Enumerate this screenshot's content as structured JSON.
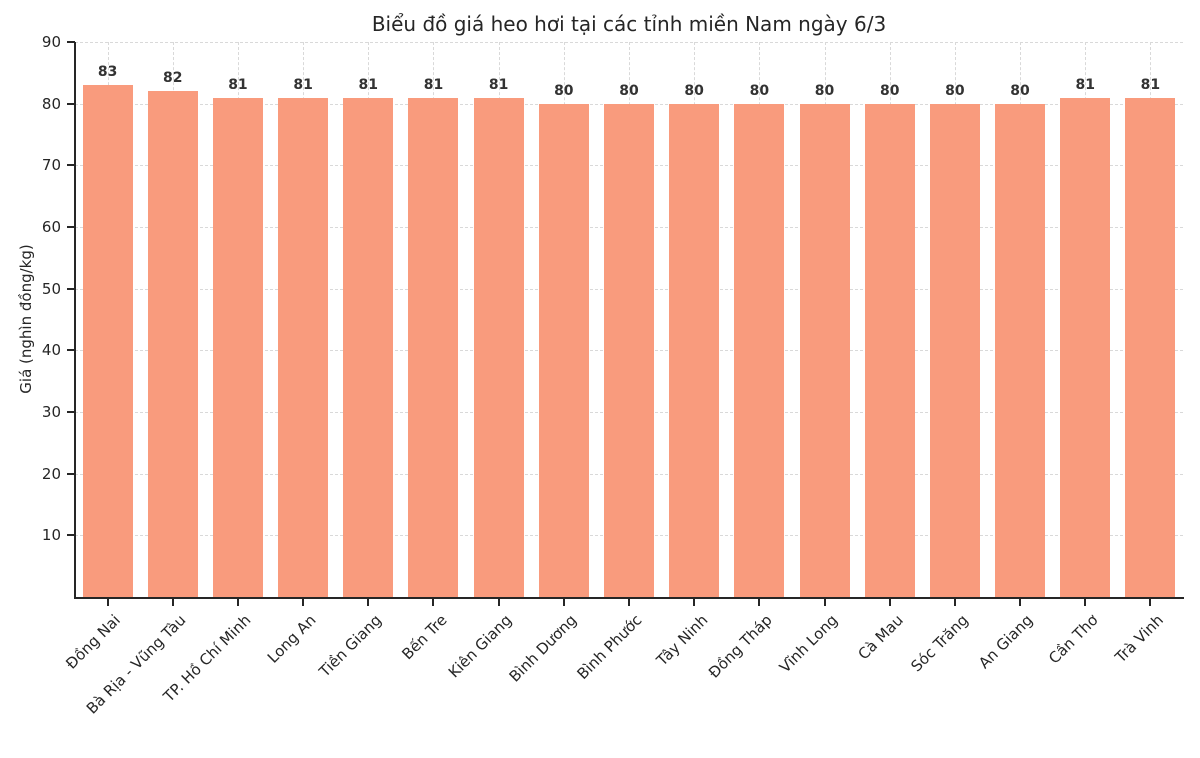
{
  "chart_data": {
    "type": "bar",
    "title": "Biểu đồ giá heo hơi tại các tỉnh miền Nam ngày 6/3",
    "xlabel": "",
    "ylabel": "Giá (nghìn đồng/kg)",
    "categories": [
      "Đồng Nai",
      "Bà Rịa - Vũng Tàu",
      "TP. Hồ Chí Minh",
      "Long An",
      "Tiền Giang",
      "Bến Tre",
      "Kiên Giang",
      "Bình Dương",
      "Bình Phước",
      "Tây Ninh",
      "Đồng Tháp",
      "Vĩnh Long",
      "Cà Mau",
      "Sóc Trăng",
      "An Giang",
      "Cần Thơ",
      "Trà Vinh"
    ],
    "values": [
      83,
      82,
      81,
      81,
      81,
      81,
      81,
      80,
      80,
      80,
      80,
      80,
      80,
      80,
      80,
      81,
      81
    ],
    "ylim": [
      0,
      90
    ],
    "yticks": [
      10,
      20,
      30,
      40,
      50,
      60,
      70,
      80,
      90
    ],
    "bar_color": "#F99B7D",
    "grid": "dashed",
    "legend": "none"
  }
}
